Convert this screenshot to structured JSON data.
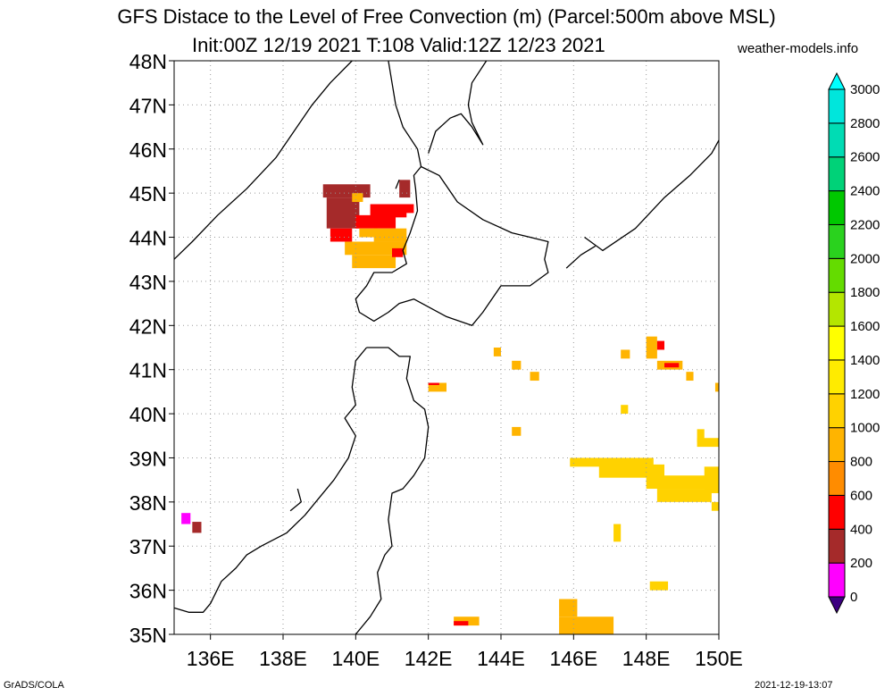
{
  "header": {
    "title": "GFS Distace to the Level of Free Convection (m) (Parcel:500m above MSL)",
    "subtitle": "Init:00Z 12/19 2021 T:108 Valid:12Z 12/23 2021",
    "source": "weather-models.info"
  },
  "footer": {
    "left": "GrADS/COLA",
    "right": "2021-12-19-13:07"
  },
  "map": {
    "lon_range": [
      135,
      150
    ],
    "lat_range": [
      35,
      48
    ],
    "lon_ticks": [
      {
        "value": 136,
        "label": "136E"
      },
      {
        "value": 138,
        "label": "138E"
      },
      {
        "value": 140,
        "label": "140E"
      },
      {
        "value": 142,
        "label": "142E"
      },
      {
        "value": 144,
        "label": "144E"
      },
      {
        "value": 146,
        "label": "146E"
      },
      {
        "value": 148,
        "label": "148E"
      },
      {
        "value": 150,
        "label": "150E"
      }
    ],
    "lat_ticks": [
      {
        "value": 35,
        "label": "35N"
      },
      {
        "value": 36,
        "label": "36N"
      },
      {
        "value": 37,
        "label": "37N"
      },
      {
        "value": 38,
        "label": "38N"
      },
      {
        "value": 39,
        "label": "39N"
      },
      {
        "value": 40,
        "label": "40N"
      },
      {
        "value": 41,
        "label": "41N"
      },
      {
        "value": 42,
        "label": "42N"
      },
      {
        "value": 43,
        "label": "43N"
      },
      {
        "value": 44,
        "label": "44N"
      },
      {
        "value": 45,
        "label": "45N"
      },
      {
        "value": 46,
        "label": "46N"
      },
      {
        "value": 47,
        "label": "47N"
      },
      {
        "value": 48,
        "label": "48N"
      }
    ],
    "grid": true,
    "coast_color": "#000000"
  },
  "colorbar": {
    "placement": "right",
    "levels": [
      0,
      200,
      400,
      600,
      800,
      1000,
      1200,
      1400,
      1600,
      1800,
      2000,
      2200,
      2400,
      2600,
      2800,
      3000
    ],
    "colors": [
      "#3c0080",
      "#ff00ff",
      "#a52a2a",
      "#ff0000",
      "#ff8c00",
      "#ffb400",
      "#ffd200",
      "#ffeb00",
      "#ffff00",
      "#b4e600",
      "#64dc00",
      "#2ad21e",
      "#00c800",
      "#00d278",
      "#00dcb4",
      "#00e6dc",
      "#00ffff"
    ]
  },
  "field_cells": [
    {
      "lon": 139.1,
      "lat": 44.9,
      "dlon": 1.3,
      "dlat": 0.3,
      "color": "#a52a2a"
    },
    {
      "lon": 139.2,
      "lat": 44.2,
      "dlon": 0.9,
      "dlat": 0.7,
      "color": "#a52a2a"
    },
    {
      "lon": 139.9,
      "lat": 44.8,
      "dlon": 0.3,
      "dlat": 0.2,
      "color": "#ffb400"
    },
    {
      "lon": 139.3,
      "lat": 43.9,
      "dlon": 0.6,
      "dlat": 0.3,
      "color": "#ff0000"
    },
    {
      "lon": 140.0,
      "lat": 44.2,
      "dlon": 1.1,
      "dlat": 0.3,
      "color": "#ff0000"
    },
    {
      "lon": 140.1,
      "lat": 44.0,
      "dlon": 0.5,
      "dlat": 0.2,
      "color": "#ffb400"
    },
    {
      "lon": 140.4,
      "lat": 44.45,
      "dlon": 1.0,
      "dlat": 0.3,
      "color": "#ff0000"
    },
    {
      "lon": 141.2,
      "lat": 44.9,
      "dlon": 0.3,
      "dlat": 0.4,
      "color": "#a52a2a"
    },
    {
      "lon": 141.3,
      "lat": 44.55,
      "dlon": 0.3,
      "dlat": 0.2,
      "color": "#ff0000"
    },
    {
      "lon": 140.5,
      "lat": 43.9,
      "dlon": 0.9,
      "dlat": 0.3,
      "color": "#ffb400"
    },
    {
      "lon": 139.7,
      "lat": 43.6,
      "dlon": 1.7,
      "dlat": 0.3,
      "color": "#ffb400"
    },
    {
      "lon": 139.9,
      "lat": 43.3,
      "dlon": 1.2,
      "dlat": 0.3,
      "color": "#ffb400"
    },
    {
      "lon": 141.0,
      "lat": 43.55,
      "dlon": 0.3,
      "dlat": 0.2,
      "color": "#ff0000"
    },
    {
      "lon": 143.8,
      "lat": 41.3,
      "dlon": 0.2,
      "dlat": 0.2,
      "color": "#ffb400"
    },
    {
      "lon": 144.3,
      "lat": 41.0,
      "dlon": 0.25,
      "dlat": 0.2,
      "color": "#ffb400"
    },
    {
      "lon": 144.8,
      "lat": 40.75,
      "dlon": 0.25,
      "dlat": 0.2,
      "color": "#ffb400"
    },
    {
      "lon": 142.0,
      "lat": 40.5,
      "dlon": 0.5,
      "dlat": 0.2,
      "color": "#ffb400"
    },
    {
      "lon": 142.0,
      "lat": 40.65,
      "dlon": 0.3,
      "dlat": 0.05,
      "color": "#ff0000"
    },
    {
      "lon": 147.3,
      "lat": 41.25,
      "dlon": 0.25,
      "dlat": 0.2,
      "color": "#ffb400"
    },
    {
      "lon": 148.0,
      "lat": 41.25,
      "dlon": 0.3,
      "dlat": 0.5,
      "color": "#ffb400"
    },
    {
      "lon": 148.3,
      "lat": 41.45,
      "dlon": 0.2,
      "dlat": 0.2,
      "color": "#ff0000"
    },
    {
      "lon": 148.3,
      "lat": 41.0,
      "dlon": 0.7,
      "dlat": 0.2,
      "color": "#ffb400"
    },
    {
      "lon": 148.5,
      "lat": 41.05,
      "dlon": 0.4,
      "dlat": 0.1,
      "color": "#ff0000"
    },
    {
      "lon": 149.1,
      "lat": 40.75,
      "dlon": 0.2,
      "dlat": 0.2,
      "color": "#ffb400"
    },
    {
      "lon": 149.9,
      "lat": 40.5,
      "dlon": 0.2,
      "dlat": 0.2,
      "color": "#ffb400"
    },
    {
      "lon": 147.3,
      "lat": 40.0,
      "dlon": 0.2,
      "dlat": 0.2,
      "color": "#ffd200"
    },
    {
      "lon": 144.3,
      "lat": 39.5,
      "dlon": 0.25,
      "dlat": 0.2,
      "color": "#ffb400"
    },
    {
      "lon": 149.4,
      "lat": 39.25,
      "dlon": 0.6,
      "dlat": 0.2,
      "color": "#ffd200"
    },
    {
      "lon": 149.4,
      "lat": 39.35,
      "dlon": 0.2,
      "dlat": 0.3,
      "color": "#ffd200"
    },
    {
      "lon": 145.9,
      "lat": 38.8,
      "dlon": 2.3,
      "dlat": 0.2,
      "color": "#ffd200"
    },
    {
      "lon": 146.7,
      "lat": 38.55,
      "dlon": 1.8,
      "dlat": 0.3,
      "color": "#ffd200"
    },
    {
      "lon": 148.0,
      "lat": 38.3,
      "dlon": 2.0,
      "dlat": 0.3,
      "color": "#ffd200"
    },
    {
      "lon": 148.3,
      "lat": 38.0,
      "dlon": 1.5,
      "dlat": 0.3,
      "color": "#ffd200"
    },
    {
      "lon": 149.6,
      "lat": 38.2,
      "dlon": 0.4,
      "dlat": 0.6,
      "color": "#ffd200"
    },
    {
      "lon": 149.8,
      "lat": 37.8,
      "dlon": 0.2,
      "dlat": 0.2,
      "color": "#ffd200"
    },
    {
      "lon": 147.1,
      "lat": 37.1,
      "dlon": 0.2,
      "dlat": 0.4,
      "color": "#ffd200"
    },
    {
      "lon": 135.2,
      "lat": 37.5,
      "dlon": 0.25,
      "dlat": 0.25,
      "color": "#ff00ff"
    },
    {
      "lon": 135.5,
      "lat": 37.3,
      "dlon": 0.25,
      "dlat": 0.25,
      "color": "#a52a2a"
    },
    {
      "lon": 148.1,
      "lat": 36.0,
      "dlon": 0.5,
      "dlat": 0.2,
      "color": "#ffd200"
    },
    {
      "lon": 142.7,
      "lat": 35.2,
      "dlon": 0.7,
      "dlat": 0.2,
      "color": "#ffb400"
    },
    {
      "lon": 142.7,
      "lat": 35.2,
      "dlon": 0.4,
      "dlat": 0.1,
      "color": "#ff0000"
    },
    {
      "lon": 145.6,
      "lat": 35.4,
      "dlon": 0.5,
      "dlat": 0.4,
      "color": "#ffb400"
    },
    {
      "lon": 145.6,
      "lat": 35.0,
      "dlon": 1.5,
      "dlat": 0.4,
      "color": "#ffb400"
    }
  ],
  "coastlines": [
    [
      [
        135.0,
        43.5
      ],
      [
        135.5,
        43.9
      ],
      [
        136.2,
        44.5
      ],
      [
        137.0,
        45.1
      ],
      [
        137.8,
        45.8
      ],
      [
        138.3,
        46.4
      ],
      [
        138.8,
        47.0
      ],
      [
        139.3,
        47.5
      ],
      [
        139.9,
        48.0
      ]
    ],
    [
      [
        140.9,
        48.0
      ],
      [
        141.0,
        47.5
      ],
      [
        141.1,
        47.0
      ],
      [
        141.3,
        46.5
      ],
      [
        141.7,
        46.0
      ],
      [
        141.8,
        45.6
      ]
    ],
    [
      [
        142.0,
        45.9
      ],
      [
        142.2,
        46.4
      ],
      [
        142.6,
        46.7
      ],
      [
        142.9,
        46.8
      ],
      [
        143.2,
        46.5
      ],
      [
        143.5,
        46.1
      ],
      [
        143.2,
        46.6
      ],
      [
        143.1,
        47.0
      ],
      [
        143.2,
        47.5
      ],
      [
        143.6,
        48.0
      ]
    ],
    [
      [
        141.8,
        45.6
      ],
      [
        141.6,
        45.4
      ],
      [
        141.65,
        45.1
      ],
      [
        141.7,
        44.6
      ],
      [
        141.5,
        44.1
      ],
      [
        141.3,
        43.7
      ],
      [
        141.4,
        43.4
      ],
      [
        141.0,
        43.2
      ],
      [
        140.5,
        43.2
      ],
      [
        140.3,
        42.9
      ],
      [
        140.0,
        42.6
      ],
      [
        140.1,
        42.3
      ],
      [
        140.5,
        42.1
      ],
      [
        140.9,
        42.3
      ],
      [
        141.2,
        42.5
      ],
      [
        141.6,
        42.6
      ],
      [
        142.5,
        42.2
      ],
      [
        143.2,
        42.0
      ],
      [
        143.5,
        42.3
      ],
      [
        144.0,
        42.9
      ],
      [
        144.8,
        42.9
      ],
      [
        145.3,
        43.2
      ],
      [
        145.2,
        43.5
      ],
      [
        145.3,
        43.9
      ],
      [
        144.8,
        44.0
      ],
      [
        144.3,
        44.1
      ],
      [
        143.5,
        44.4
      ],
      [
        142.8,
        44.8
      ],
      [
        142.3,
        45.4
      ],
      [
        141.8,
        45.6
      ]
    ],
    [
      [
        140.3,
        41.5
      ],
      [
        140.9,
        41.5
      ],
      [
        141.2,
        41.3
      ],
      [
        141.5,
        41.3
      ],
      [
        141.4,
        40.8
      ],
      [
        141.6,
        40.3
      ],
      [
        141.9,
        40.1
      ],
      [
        142.0,
        39.7
      ],
      [
        141.9,
        39.0
      ],
      [
        141.6,
        38.6
      ],
      [
        141.3,
        38.3
      ],
      [
        141.0,
        38.2
      ],
      [
        140.9,
        37.6
      ],
      [
        141.0,
        37.0
      ],
      [
        140.8,
        36.8
      ],
      [
        140.6,
        36.4
      ],
      [
        140.7,
        35.8
      ],
      [
        140.4,
        35.4
      ],
      [
        140.0,
        35.0
      ]
    ],
    [
      [
        140.3,
        41.5
      ],
      [
        140.0,
        41.2
      ],
      [
        139.9,
        40.6
      ],
      [
        140.0,
        40.2
      ],
      [
        139.7,
        39.9
      ],
      [
        140.0,
        39.5
      ],
      [
        139.8,
        39.0
      ],
      [
        139.4,
        38.5
      ],
      [
        138.9,
        38.0
      ],
      [
        138.6,
        37.7
      ],
      [
        138.1,
        37.3
      ],
      [
        137.4,
        37.0
      ],
      [
        137.0,
        36.8
      ],
      [
        136.7,
        36.5
      ],
      [
        136.3,
        36.2
      ],
      [
        136.0,
        35.7
      ],
      [
        135.8,
        35.5
      ],
      [
        135.4,
        35.5
      ],
      [
        135.0,
        35.6
      ]
    ],
    [
      [
        146.3,
        44.0
      ],
      [
        146.8,
        43.7
      ],
      [
        147.7,
        44.2
      ],
      [
        148.5,
        44.9
      ],
      [
        149.2,
        45.4
      ],
      [
        149.8,
        45.9
      ],
      [
        150.0,
        46.2
      ]
    ],
    [
      [
        145.8,
        43.3
      ],
      [
        146.2,
        43.6
      ],
      [
        146.6,
        43.8
      ]
    ],
    [
      [
        138.4,
        38.3
      ],
      [
        138.5,
        38.0
      ],
      [
        138.2,
        37.8
      ]
    ],
    [
      [
        141.2,
        45.3
      ],
      [
        141.1,
        45.1
      ]
    ]
  ]
}
